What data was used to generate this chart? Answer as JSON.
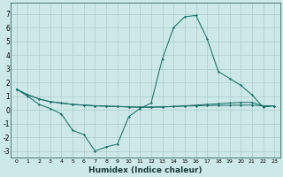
{
  "xlabel": "Humidex (Indice chaleur)",
  "bg_color": "#cde8e8",
  "grid_color": "#aacccc",
  "line_color": "#1a7068",
  "xlim": [
    -0.5,
    23.5
  ],
  "ylim": [
    -3.5,
    7.8
  ],
  "xticks": [
    0,
    1,
    2,
    3,
    4,
    5,
    6,
    7,
    8,
    9,
    10,
    11,
    12,
    13,
    14,
    15,
    16,
    17,
    18,
    19,
    20,
    21,
    22,
    23
  ],
  "yticks": [
    -3,
    -2,
    -1,
    0,
    1,
    2,
    3,
    4,
    5,
    6,
    7
  ],
  "series0": [
    1.5,
    1.0,
    0.4,
    0.1,
    -0.3,
    -1.5,
    -1.8,
    -3.0,
    -2.7,
    -2.5,
    -0.5,
    0.1,
    0.5,
    3.7,
    6.0,
    6.8,
    6.9,
    5.2,
    2.8,
    2.3,
    1.8,
    1.1,
    0.2,
    0.3
  ],
  "series1": [
    1.5,
    1.1,
    0.8,
    0.6,
    0.5,
    0.4,
    0.35,
    0.3,
    0.28,
    0.25,
    0.22,
    0.2,
    0.2,
    0.22,
    0.25,
    0.28,
    0.3,
    0.32,
    0.33,
    0.34,
    0.35,
    0.35,
    0.3,
    0.3
  ],
  "series2": [
    1.5,
    1.1,
    0.8,
    0.6,
    0.5,
    0.4,
    0.35,
    0.3,
    0.28,
    0.25,
    0.22,
    0.2,
    0.2,
    0.22,
    0.25,
    0.3,
    0.35,
    0.4,
    0.45,
    0.5,
    0.55,
    0.55,
    0.3,
    0.3
  ],
  "xlabel_fontsize": 6.5,
  "tick_fontsize_x": 4.5,
  "tick_fontsize_y": 5.5,
  "linewidth": 0.75,
  "markersize": 1.5
}
